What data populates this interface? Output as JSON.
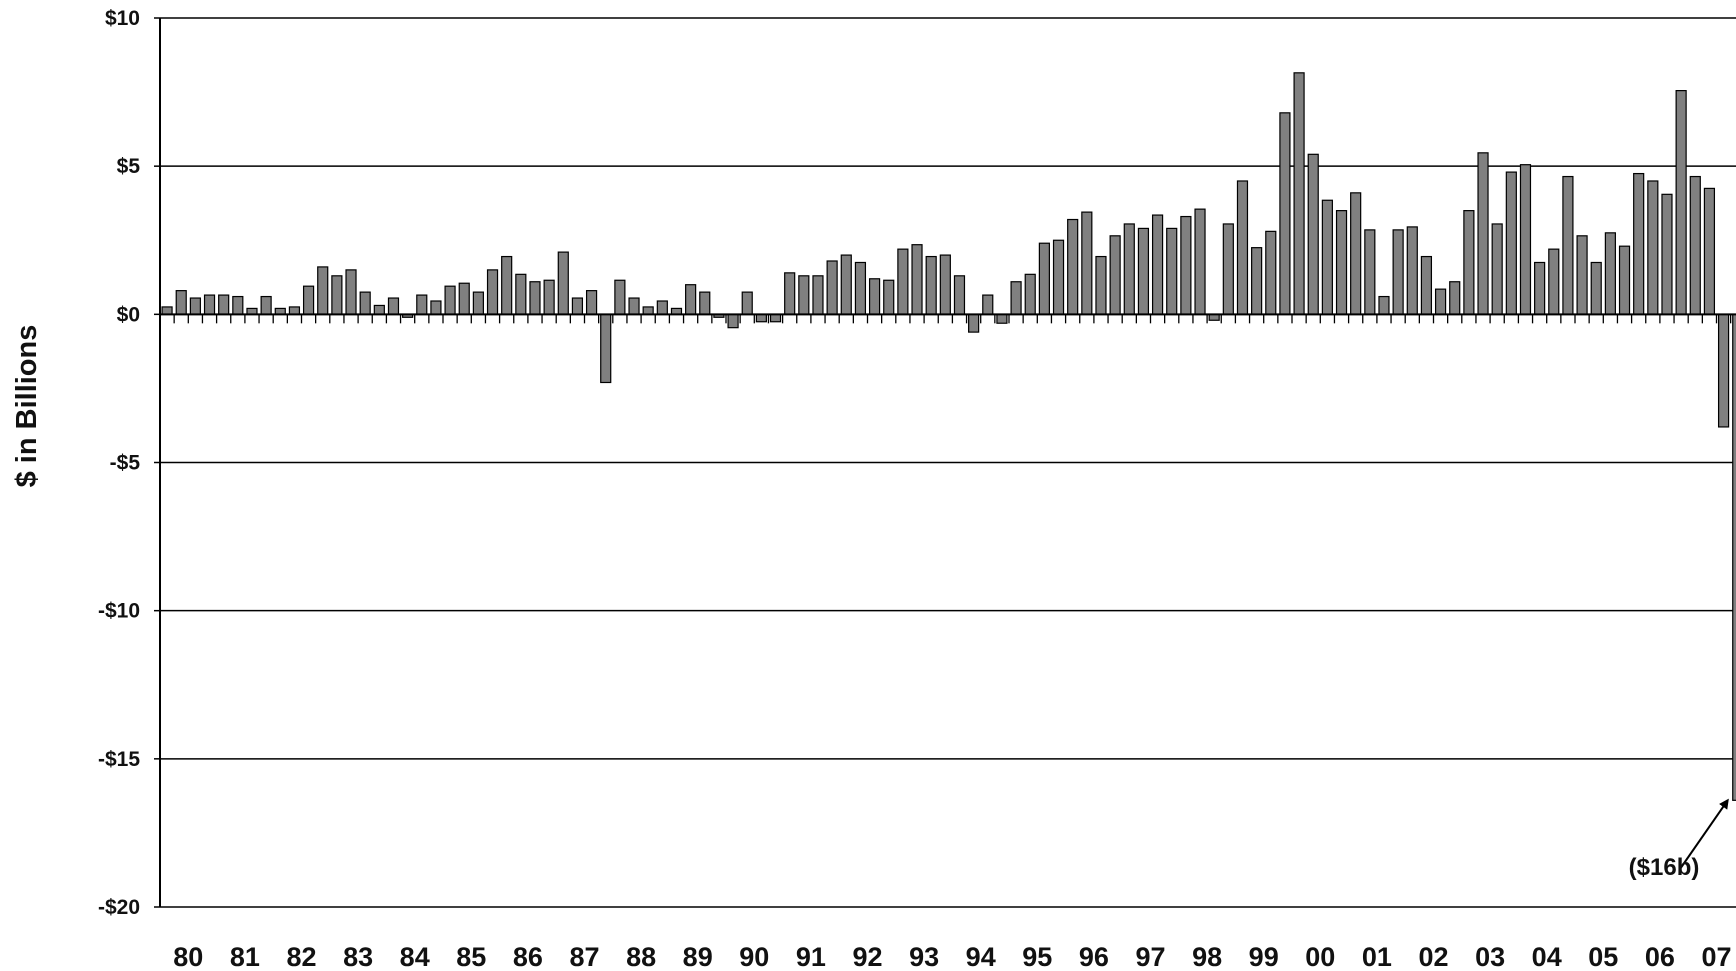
{
  "chart_data": {
    "type": "bar",
    "ylabel": "$ in Billions",
    "ylim": [
      -20,
      10
    ],
    "grid": true,
    "y_ticks": [
      {
        "value": 10,
        "label": "$10"
      },
      {
        "value": 5,
        "label": "$5"
      },
      {
        "value": 0,
        "label": "$0"
      },
      {
        "value": -5,
        "label": "-$5"
      },
      {
        "value": -10,
        "label": "-$10"
      },
      {
        "value": -15,
        "label": "-$15"
      },
      {
        "value": -20,
        "label": "-$20"
      }
    ],
    "x_tick_labels": [
      "80",
      "81",
      "82",
      "83",
      "84",
      "85",
      "86",
      "87",
      "88",
      "89",
      "90",
      "91",
      "92",
      "93",
      "94",
      "95",
      "96",
      "97",
      "98",
      "99",
      "00",
      "01",
      "02",
      "03",
      "04",
      "05",
      "06",
      "07"
    ],
    "period": "quarterly",
    "start_quarter": "1980 Q1",
    "series": [
      {
        "color": "#808080",
        "values": [
          0.25,
          0.8,
          0.55,
          0.65,
          0.65,
          0.6,
          0.2,
          0.6,
          0.2,
          0.25,
          0.95,
          1.6,
          1.3,
          1.5,
          0.75,
          0.3,
          0.55,
          -0.1,
          0.65,
          0.45,
          0.95,
          1.05,
          0.75,
          1.5,
          1.95,
          1.35,
          1.1,
          1.15,
          2.1,
          0.55,
          0.8,
          -2.3,
          1.15,
          0.55,
          0.25,
          0.45,
          0.2,
          1.0,
          0.75,
          -0.1,
          -0.45,
          0.75,
          -0.25,
          -0.25,
          1.4,
          1.3,
          1.3,
          1.8,
          2.0,
          1.75,
          1.2,
          1.15,
          2.2,
          2.35,
          1.95,
          2.0,
          1.3,
          -0.6,
          0.65,
          -0.3,
          1.1,
          1.35,
          2.4,
          2.5,
          3.2,
          3.45,
          1.95,
          2.65,
          3.05,
          2.9,
          3.35,
          2.9,
          3.3,
          3.55,
          -0.2,
          3.05,
          4.5,
          2.25,
          2.8,
          6.8,
          8.15,
          5.4,
          3.85,
          3.5,
          4.1,
          2.85,
          0.6,
          2.85,
          2.95,
          1.95,
          0.85,
          1.1,
          3.5,
          5.45,
          3.05,
          4.8,
          5.05,
          1.75,
          2.2,
          4.65,
          2.65,
          1.75,
          2.75,
          2.3,
          4.75,
          4.5,
          4.05,
          7.55,
          4.65,
          4.25,
          -3.8,
          -16.4
        ]
      }
    ],
    "annotations": [
      {
        "text": "($16b)",
        "target_index": 111
      }
    ]
  }
}
